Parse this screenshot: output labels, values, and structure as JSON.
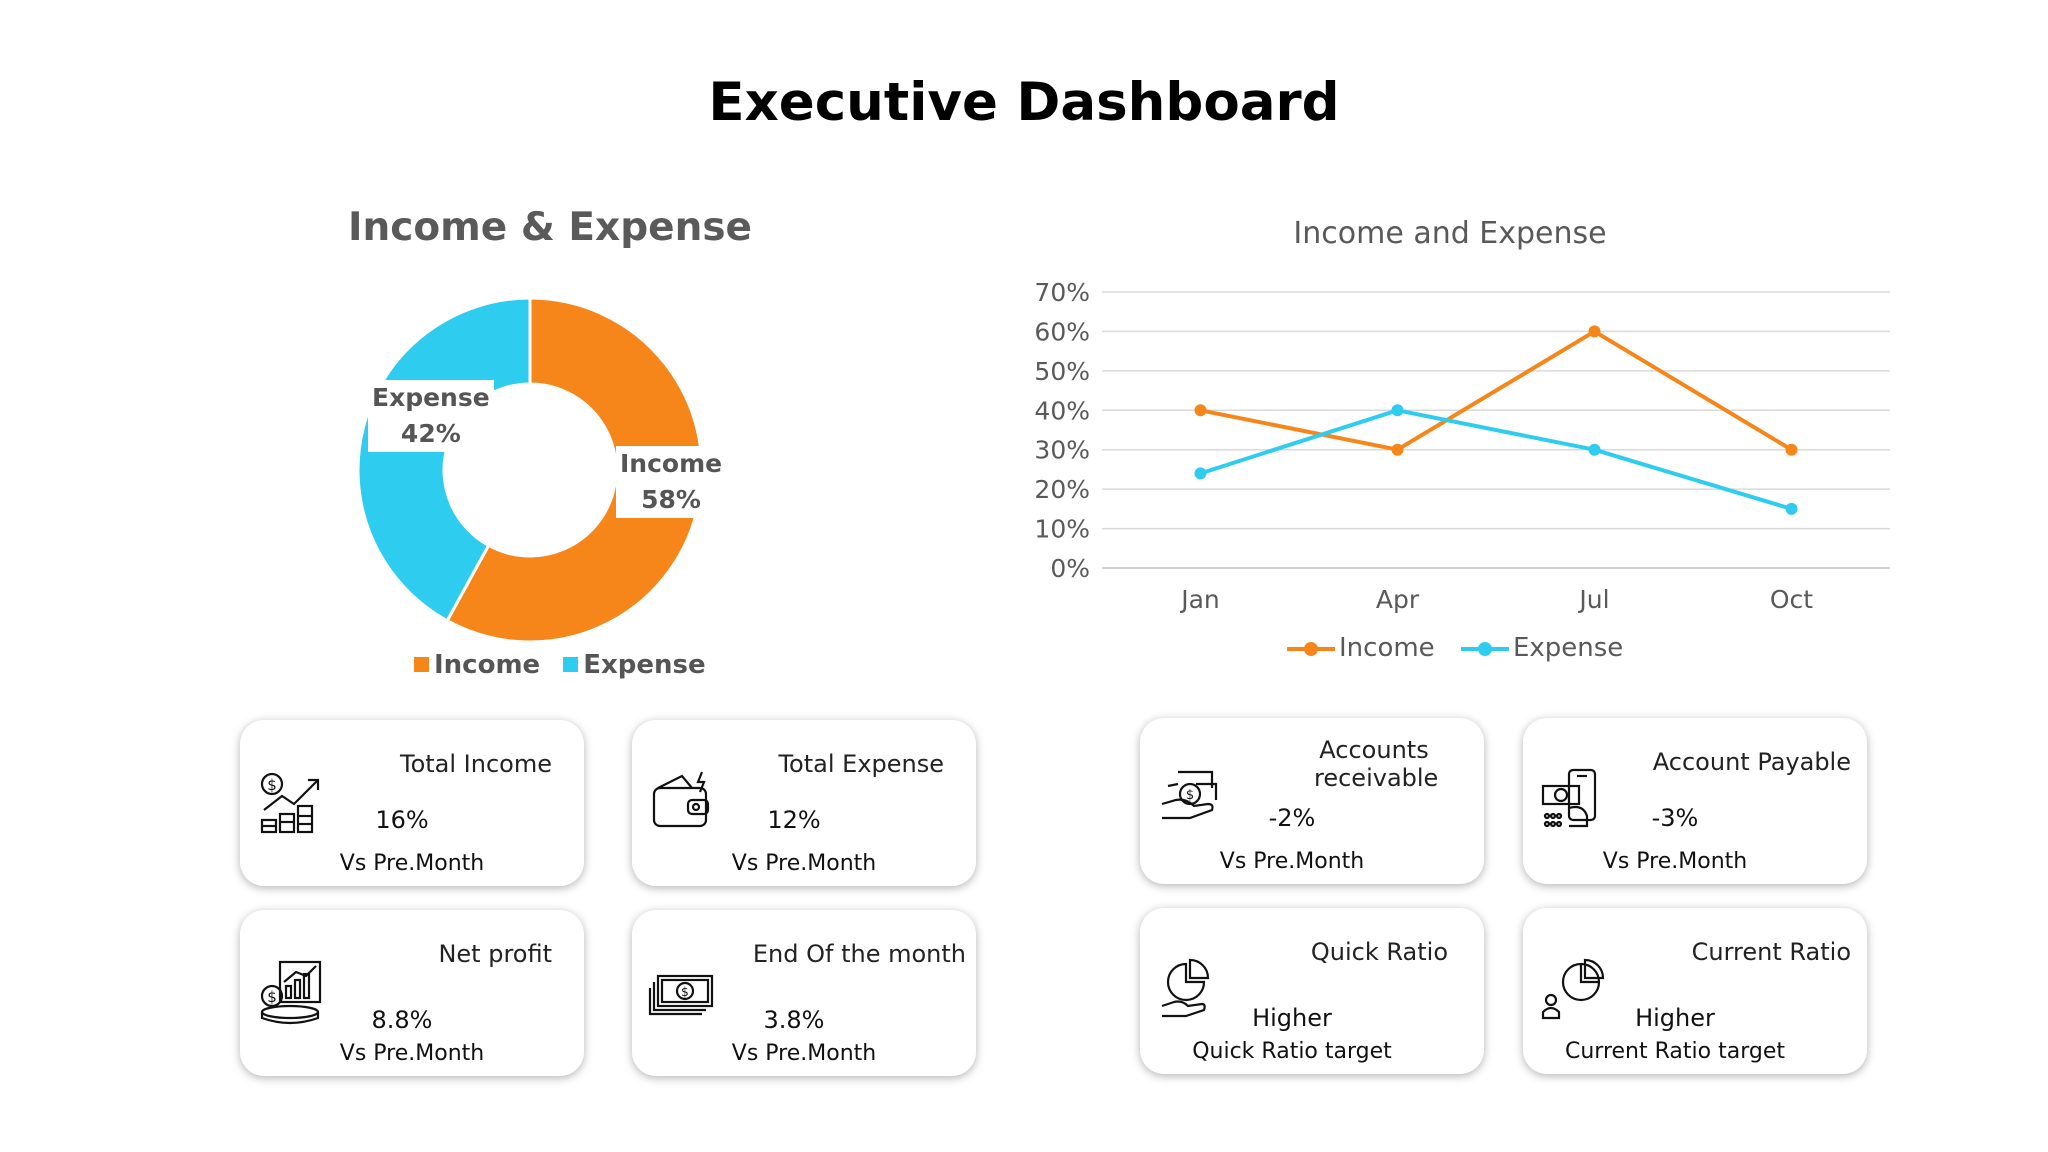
{
  "page": {
    "title": "Executive Dashboard"
  },
  "chart_data": [
    {
      "type": "pie",
      "title": "Income & Expense",
      "categories": [
        "Income",
        "Expense"
      ],
      "values": [
        58,
        42
      ],
      "value_labels": [
        "58%",
        "42%"
      ],
      "colors": [
        "#F7861A",
        "#2ECDF0"
      ],
      "legend": "bottom"
    },
    {
      "type": "line",
      "title": "Income and Expense",
      "x": [
        "Jan",
        "Apr",
        "Jul",
        "Oct"
      ],
      "series": [
        {
          "name": "Income",
          "values": [
            40,
            30,
            60,
            30
          ],
          "color": "#F7861A"
        },
        {
          "name": "Expense",
          "values": [
            24,
            40,
            30,
            15
          ],
          "color": "#2ECDF0"
        }
      ],
      "ylim": [
        0,
        70
      ],
      "yticks": [
        "0%",
        "10%",
        "20%",
        "30%",
        "40%",
        "50%",
        "60%",
        "70%"
      ],
      "grid": true,
      "legend": "bottom"
    }
  ],
  "cards": [
    {
      "title": "Total Income",
      "value": "16%",
      "sub": "Vs Pre.Month",
      "icon": "income-growth-icon"
    },
    {
      "title": "Total Expense",
      "value": "12%",
      "sub": "Vs Pre.Month",
      "icon": "wallet-icon"
    },
    {
      "title": "Net profit",
      "value": "8.8%",
      "sub": "Vs Pre.Month",
      "icon": "profit-chart-icon"
    },
    {
      "title": "End Of the month",
      "value": "3.8%",
      "sub": "Vs Pre.Month",
      "icon": "banknotes-icon"
    },
    {
      "title": "Accounts receivable",
      "value": "-2%",
      "sub": "Vs Pre.Month",
      "icon": "hand-money-icon"
    },
    {
      "title": "Account Payable",
      "value": "-3%",
      "sub": "Vs Pre.Month",
      "icon": "payment-phone-icon"
    },
    {
      "title": "Quick Ratio",
      "value": "Higher",
      "sub": "Quick Ratio target",
      "icon": "pie-hand-icon"
    },
    {
      "title": "Current Ratio",
      "value": "Higher",
      "sub": "Current Ratio target",
      "icon": "pie-person-icon"
    }
  ]
}
